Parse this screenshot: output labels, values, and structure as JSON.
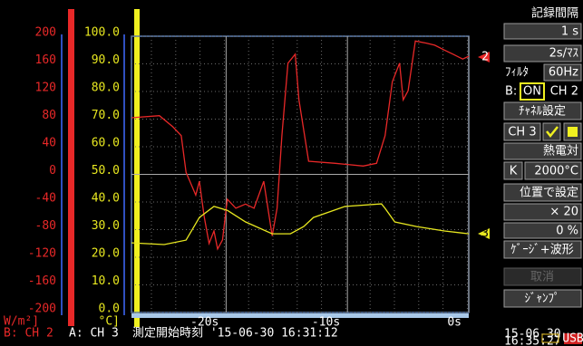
{
  "chart_data": {
    "type": "line",
    "y_label": "W/m²]",
    "y2_label": "°C]",
    "xlim": [
      -27.8,
      0
    ],
    "ylim": [
      -200,
      200
    ],
    "y2lim": [
      0,
      100
    ],
    "xticks": [
      {
        "value": -20,
        "label": "-20s"
      },
      {
        "value": -10,
        "label": "-10s"
      },
      {
        "value": 0,
        "label": "0s"
      }
    ],
    "yticks": [
      200,
      160,
      120,
      80,
      40,
      0,
      -40,
      -80,
      -120,
      -160,
      -200
    ],
    "y2ticks": [
      {
        "value": 100,
        "label": "100.0"
      },
      {
        "value": 90,
        "label": "90.0"
      },
      {
        "value": 80,
        "label": "80.0"
      },
      {
        "value": 70,
        "label": "70.0"
      },
      {
        "value": 60,
        "label": "60.0"
      },
      {
        "value": 50,
        "label": "50.0"
      },
      {
        "value": 40,
        "label": "40.0"
      },
      {
        "value": 30,
        "label": "30.0"
      },
      {
        "value": 20,
        "label": "20.0"
      },
      {
        "value": 10,
        "label": "10.0"
      },
      {
        "value": 0,
        "label": "0.0"
      }
    ],
    "grid": true,
    "series": [
      {
        "name": "2",
        "color": "#e82828",
        "x": [
          -27.8,
          -25.5,
          -24.4,
          -23.7,
          -23.3,
          -22.5,
          -22.2,
          -21.8,
          -21.4,
          -21.0,
          -20.7,
          -20.3,
          -19.9,
          -19.2,
          -18.4,
          -17.7,
          -16.9,
          -16.2,
          -15.8,
          -15.4,
          -14.9,
          -14.3,
          -14.0,
          -13.2,
          -11.0,
          -8.7,
          -7.6,
          -6.9,
          -6.3,
          -5.7,
          -5.4,
          -5.0,
          -4.4,
          -3.5,
          -2.8,
          -2.0,
          -1.3,
          -0.5,
          0
        ],
        "values": [
          82,
          85,
          69,
          56,
          3,
          -30,
          -10,
          -62,
          -100,
          -82,
          -108,
          -95,
          -36,
          -49,
          -43,
          -49,
          -10,
          -89,
          -49,
          56,
          161,
          174,
          108,
          19,
          16,
          12,
          16,
          56,
          134,
          161,
          108,
          121,
          193,
          190,
          187,
          180,
          174,
          167,
          171
        ]
      },
      {
        "name": "3",
        "color": "#e8e820",
        "axis": "y2",
        "x": [
          -27.8,
          -25.1,
          -23.3,
          -22.2,
          -21.0,
          -19.9,
          -18.4,
          -16.2,
          -14.7,
          -13.6,
          -12.8,
          -10.2,
          -7.2,
          -6.9,
          -6.1,
          -4.3,
          -2.0,
          0
        ],
        "values": [
          25.2,
          24.6,
          26.2,
          34.4,
          38.4,
          37.0,
          32.8,
          28.5,
          28.5,
          31.1,
          34.4,
          38.4,
          39.3,
          37.7,
          32.8,
          31.1,
          29.5,
          28.5
        ]
      }
    ]
  },
  "status": {
    "b_channel": "B: CH 2",
    "a_channel": "A: CH 3",
    "start_time": "測定開始時刻 '15-06-30 16:31:12",
    "date": "15-06-30",
    "time": "16:35:27",
    "usb": "USB"
  },
  "panel": {
    "interval_title": "記録間隔",
    "interval": "1 s",
    "scale": "2s/ﾏｽ",
    "filter_label": "ﾌｨﾙﾀ",
    "filter": "60Hz",
    "b_label": "B:",
    "b_on": "ON",
    "b_ch": "CH 2",
    "channel_setting": "ﾁｬﾈﾙ設定",
    "ch3": "CH 3",
    "sensor": "熱電対",
    "sensor_type": "K",
    "sensor_range": "2000°C",
    "position_setting": "位置で設定",
    "zoom": "× 20",
    "offset": "0 %",
    "display": "ｹﾞｰｼﾞ+波形",
    "cancel": "取消",
    "jump": "ｼﾞｬﾝﾌﾟ"
  }
}
